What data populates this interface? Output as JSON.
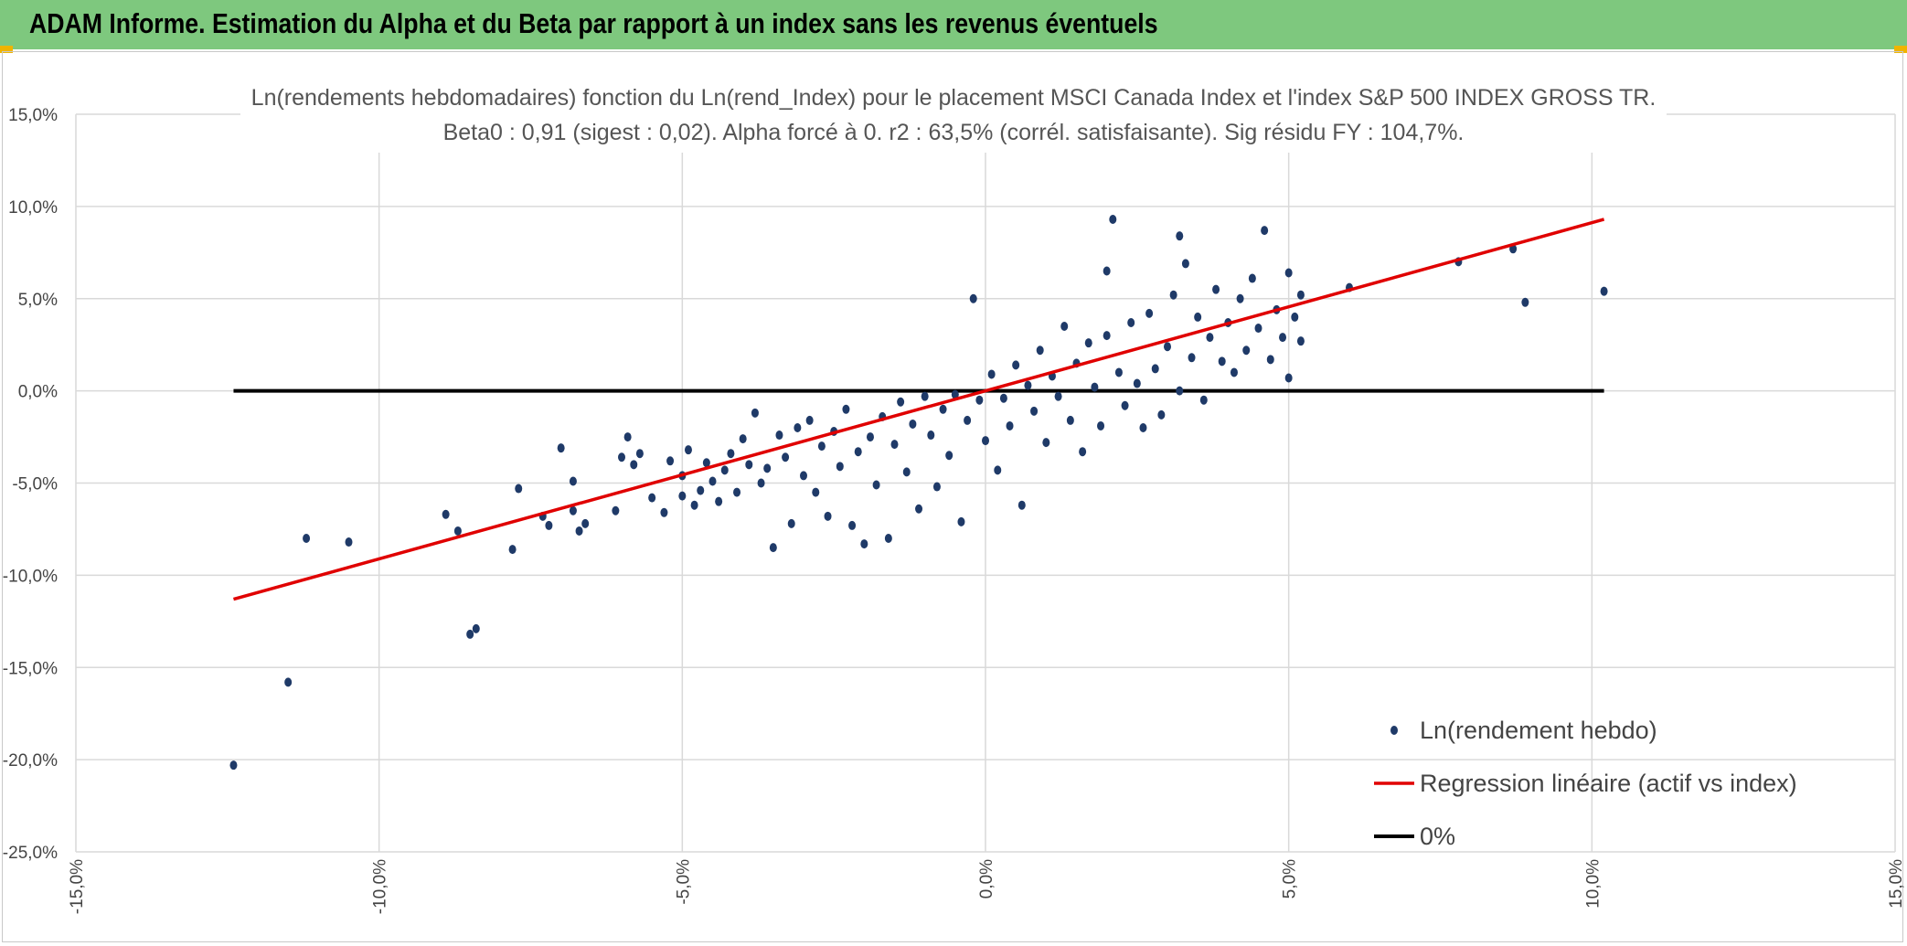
{
  "header": {
    "title": "ADAM Informe. Estimation du Alpha et du Beta par rapport à un index sans les revenus éventuels",
    "background": "#7ec87e"
  },
  "chart_data": {
    "type": "scatter",
    "title": "Ln(rendements hebdomadaires) fonction du Ln(rend_Index) pour le placement MSCI Canada Index et l'index S&P 500 INDEX GROSS TR.",
    "subtitle": "Beta0 : 0,91 (sigest : 0,02). Alpha forcé à 0. r2 : 63,5% (corrél. satisfaisante). Sig résidu FY : 104,7%.",
    "xlim": [
      -15,
      15
    ],
    "ylim": [
      -25,
      15
    ],
    "x_ticks": [
      "-15,0%",
      "-10,0%",
      "-5,0%",
      "0,0%",
      "5,0%",
      "10,0%",
      "15,0%"
    ],
    "y_ticks": [
      "15,0%",
      "10,0%",
      "5,0%",
      "0,0%",
      "-5,0%",
      "-10,0%",
      "-15,0%",
      "-20,0%",
      "-25,0%"
    ],
    "grid": true,
    "legend_position": "bottom-right",
    "colors": {
      "scatter": "#1f3a68",
      "regression": "#e00000",
      "zero": "#000000",
      "grid": "#d9d9d9"
    },
    "series": [
      {
        "name": "Ln(rendement hebdo)",
        "kind": "scatter",
        "points": [
          [
            -12.4,
            -20.3
          ],
          [
            -11.5,
            -15.8
          ],
          [
            -11.2,
            -8.0
          ],
          [
            -10.5,
            -8.2
          ],
          [
            -8.9,
            -6.7
          ],
          [
            -8.7,
            -7.6
          ],
          [
            -8.5,
            -13.2
          ],
          [
            -8.4,
            -12.9
          ],
          [
            -7.8,
            -8.6
          ],
          [
            -7.7,
            -5.3
          ],
          [
            -7.3,
            -6.8
          ],
          [
            -7.2,
            -7.3
          ],
          [
            -7.0,
            -3.1
          ],
          [
            -6.8,
            -6.5
          ],
          [
            -6.8,
            -4.9
          ],
          [
            -6.7,
            -7.6
          ],
          [
            -6.6,
            -7.2
          ],
          [
            -6.1,
            -6.5
          ],
          [
            -6.0,
            -3.6
          ],
          [
            -5.9,
            -2.5
          ],
          [
            -5.8,
            -4.0
          ],
          [
            -5.7,
            -3.4
          ],
          [
            -5.5,
            -5.8
          ],
          [
            -5.3,
            -6.6
          ],
          [
            -5.2,
            -3.8
          ],
          [
            -5.0,
            -4.6
          ],
          [
            -5.0,
            -5.7
          ],
          [
            -4.9,
            -3.2
          ],
          [
            -4.8,
            -6.2
          ],
          [
            -4.7,
            -5.4
          ],
          [
            -4.6,
            -3.9
          ],
          [
            -4.5,
            -4.9
          ],
          [
            -4.4,
            -6.0
          ],
          [
            -4.3,
            -4.3
          ],
          [
            -4.2,
            -3.4
          ],
          [
            -4.1,
            -5.5
          ],
          [
            -4.0,
            -2.6
          ],
          [
            -3.9,
            -4.0
          ],
          [
            -3.8,
            -1.2
          ],
          [
            -3.7,
            -5.0
          ],
          [
            -3.6,
            -4.2
          ],
          [
            -3.5,
            -8.5
          ],
          [
            -3.4,
            -2.4
          ],
          [
            -3.3,
            -3.6
          ],
          [
            -3.2,
            -7.2
          ],
          [
            -3.1,
            -2.0
          ],
          [
            -3.0,
            -4.6
          ],
          [
            -2.9,
            -1.6
          ],
          [
            -2.8,
            -5.5
          ],
          [
            -2.7,
            -3.0
          ],
          [
            -2.6,
            -6.8
          ],
          [
            -2.5,
            -2.2
          ],
          [
            -2.4,
            -4.1
          ],
          [
            -2.3,
            -1.0
          ],
          [
            -2.2,
            -7.3
          ],
          [
            -2.1,
            -3.3
          ],
          [
            -2.0,
            -8.3
          ],
          [
            -1.9,
            -2.5
          ],
          [
            -1.8,
            -5.1
          ],
          [
            -1.7,
            -1.4
          ],
          [
            -1.6,
            -8.0
          ],
          [
            -1.5,
            -2.9
          ],
          [
            -1.4,
            -0.6
          ],
          [
            -1.3,
            -4.4
          ],
          [
            -1.2,
            -1.8
          ],
          [
            -1.1,
            -6.4
          ],
          [
            -1.0,
            -0.3
          ],
          [
            -0.9,
            -2.4
          ],
          [
            -0.8,
            -5.2
          ],
          [
            -0.7,
            -1.0
          ],
          [
            -0.6,
            -3.5
          ],
          [
            -0.5,
            -0.2
          ],
          [
            -0.4,
            -7.1
          ],
          [
            -0.3,
            -1.6
          ],
          [
            -0.2,
            5.0
          ],
          [
            -0.1,
            -0.5
          ],
          [
            0.0,
            -2.7
          ],
          [
            0.1,
            0.9
          ],
          [
            0.2,
            -4.3
          ],
          [
            0.3,
            -0.4
          ],
          [
            0.4,
            -1.9
          ],
          [
            0.5,
            1.4
          ],
          [
            0.6,
            -6.2
          ],
          [
            0.7,
            0.3
          ],
          [
            0.8,
            -1.1
          ],
          [
            0.9,
            2.2
          ],
          [
            1.0,
            -2.8
          ],
          [
            1.1,
            0.8
          ],
          [
            1.2,
            -0.3
          ],
          [
            1.3,
            3.5
          ],
          [
            1.4,
            -1.6
          ],
          [
            1.5,
            1.5
          ],
          [
            1.6,
            -3.3
          ],
          [
            1.7,
            2.6
          ],
          [
            1.8,
            0.2
          ],
          [
            1.9,
            -1.9
          ],
          [
            2.0,
            3.0
          ],
          [
            2.0,
            6.5
          ],
          [
            2.1,
            9.3
          ],
          [
            2.2,
            1.0
          ],
          [
            2.3,
            -0.8
          ],
          [
            2.4,
            3.7
          ],
          [
            2.5,
            0.4
          ],
          [
            2.6,
            -2.0
          ],
          [
            2.7,
            4.2
          ],
          [
            2.8,
            1.2
          ],
          [
            2.9,
            -1.3
          ],
          [
            3.0,
            2.4
          ],
          [
            3.1,
            5.2
          ],
          [
            3.2,
            0.0
          ],
          [
            3.2,
            8.4
          ],
          [
            3.3,
            6.9
          ],
          [
            3.4,
            1.8
          ],
          [
            3.5,
            4.0
          ],
          [
            3.6,
            -0.5
          ],
          [
            3.7,
            2.9
          ],
          [
            3.8,
            5.5
          ],
          [
            3.9,
            1.6
          ],
          [
            4.0,
            3.7
          ],
          [
            4.1,
            1.0
          ],
          [
            4.2,
            5.0
          ],
          [
            4.3,
            2.2
          ],
          [
            4.4,
            6.1
          ],
          [
            4.5,
            3.4
          ],
          [
            4.6,
            8.7
          ],
          [
            4.7,
            1.7
          ],
          [
            4.8,
            4.4
          ],
          [
            4.9,
            2.9
          ],
          [
            5.0,
            6.4
          ],
          [
            5.0,
            0.7
          ],
          [
            5.1,
            4.0
          ],
          [
            5.2,
            2.7
          ],
          [
            5.2,
            5.2
          ],
          [
            6.0,
            5.6
          ],
          [
            7.8,
            7.0
          ],
          [
            8.7,
            7.7
          ],
          [
            8.9,
            4.8
          ],
          [
            10.2,
            5.4
          ]
        ]
      },
      {
        "name": "Regression linéaire (actif vs index)",
        "kind": "line",
        "points": [
          [
            -12.4,
            -11.3
          ],
          [
            10.2,
            9.3
          ]
        ]
      },
      {
        "name": "0%",
        "kind": "line",
        "points": [
          [
            -12.4,
            0
          ],
          [
            10.2,
            0
          ]
        ]
      }
    ]
  }
}
